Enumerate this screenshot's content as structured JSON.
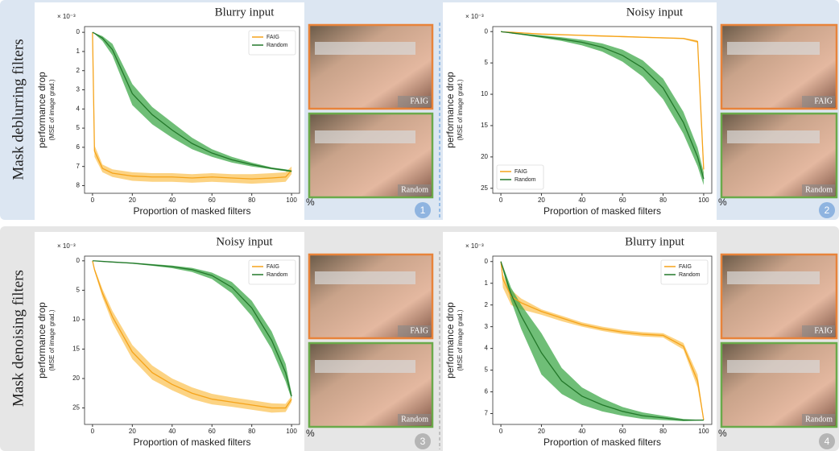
{
  "rows": [
    {
      "label": "Mask deblurring filters"
    },
    {
      "label": "Mask denoising filters"
    }
  ],
  "panels": [
    {
      "number": "1",
      "images": [
        "FAIG",
        "Random"
      ]
    },
    {
      "number": "2",
      "images": [
        "FAIG",
        "Random"
      ]
    },
    {
      "number": "3",
      "images": [
        "FAIG",
        "Random"
      ]
    },
    {
      "number": "4",
      "images": [
        "FAIG",
        "Random"
      ]
    }
  ],
  "chart_data": [
    {
      "type": "line",
      "title": "Blurry input",
      "xlabel": "Proportion of masked filters",
      "x_unit": "%",
      "ylabel": "performance drop",
      "ylabel_sub": "(MSE of image grad.)",
      "y_scale": "× 10⁻³",
      "legend": "upper right",
      "x": [
        0,
        1,
        5,
        10,
        20,
        30,
        40,
        50,
        60,
        70,
        80,
        90,
        97,
        100
      ],
      "xlim": [
        -4,
        104
      ],
      "xticks": [
        0,
        20,
        40,
        60,
        80,
        100
      ],
      "ylim": [
        8.4,
        -0.3
      ],
      "yticks": [
        0,
        1,
        2,
        3,
        4,
        5,
        6,
        7,
        8
      ],
      "series": [
        {
          "name": "FAIG",
          "color": "#f5a31a",
          "band_color": "#fbc45a",
          "values": [
            0,
            6.2,
            7.1,
            7.35,
            7.5,
            7.55,
            7.55,
            7.6,
            7.55,
            7.6,
            7.65,
            7.6,
            7.55,
            7.2
          ],
          "lower": [
            0,
            5.9,
            6.9,
            7.15,
            7.3,
            7.35,
            7.35,
            7.4,
            7.35,
            7.4,
            7.4,
            7.35,
            7.3,
            7.0
          ],
          "upper": [
            0,
            6.5,
            7.3,
            7.55,
            7.75,
            7.8,
            7.8,
            7.85,
            7.8,
            7.85,
            7.9,
            7.85,
            7.8,
            7.4
          ]
        },
        {
          "name": "Random",
          "color": "#23782a",
          "band_color": "#3fa84a",
          "values": [
            0,
            0.05,
            0.3,
            0.9,
            3.2,
            4.3,
            5.1,
            5.8,
            6.3,
            6.65,
            6.9,
            7.1,
            7.2,
            7.25
          ],
          "lower": [
            0,
            0.03,
            0.2,
            0.6,
            2.7,
            3.9,
            4.7,
            5.5,
            6.1,
            6.5,
            6.8,
            7.05,
            7.15,
            7.2
          ],
          "upper": [
            0,
            0.08,
            0.45,
            1.2,
            3.8,
            4.8,
            5.5,
            6.1,
            6.5,
            6.8,
            7.0,
            7.15,
            7.25,
            7.3
          ]
        }
      ]
    },
    {
      "type": "line",
      "title": "Noisy input",
      "xlabel": "Proportion of masked filters",
      "x_unit": "%",
      "ylabel": "performance drop",
      "ylabel_sub": "(MSE of image grad.)",
      "y_scale": "× 10⁻³",
      "legend": "lower left",
      "x": [
        0,
        1,
        5,
        10,
        20,
        30,
        40,
        50,
        60,
        70,
        80,
        90,
        97,
        100
      ],
      "xlim": [
        -4,
        104
      ],
      "xticks": [
        0,
        20,
        40,
        60,
        80,
        100
      ],
      "ylim": [
        25.8,
        -0.8
      ],
      "yticks": [
        0,
        5,
        10,
        15,
        20,
        25
      ],
      "series": [
        {
          "name": "FAIG",
          "color": "#f5a31a",
          "band_color": "#fbc45a",
          "values": [
            0,
            0.05,
            0.1,
            0.2,
            0.4,
            0.5,
            0.6,
            0.7,
            0.8,
            0.9,
            1.0,
            1.1,
            1.6,
            22
          ],
          "lower": [
            0,
            0.03,
            0.08,
            0.15,
            0.3,
            0.4,
            0.5,
            0.6,
            0.7,
            0.8,
            0.9,
            1.0,
            1.4,
            20.5
          ],
          "upper": [
            0,
            0.08,
            0.15,
            0.25,
            0.5,
            0.6,
            0.7,
            0.8,
            0.9,
            1.0,
            1.1,
            1.2,
            1.8,
            23.5
          ]
        },
        {
          "name": "Random",
          "color": "#23782a",
          "band_color": "#3fa84a",
          "values": [
            0,
            0.05,
            0.2,
            0.4,
            0.8,
            1.2,
            1.7,
            2.5,
            3.8,
            5.8,
            9,
            14.5,
            20,
            23.5
          ],
          "lower": [
            0,
            0.03,
            0.15,
            0.3,
            0.6,
            0.9,
            1.3,
            1.9,
            2.9,
            4.6,
            7.5,
            12.8,
            18.5,
            22.5
          ],
          "upper": [
            0,
            0.08,
            0.3,
            0.5,
            1.0,
            1.5,
            2.2,
            3.2,
            4.8,
            7.2,
            10.8,
            16.3,
            21.5,
            24.5
          ]
        }
      ]
    },
    {
      "type": "line",
      "title": "Noisy input",
      "xlabel": "Proportion of masked filters",
      "x_unit": "%",
      "ylabel": "performance drop",
      "ylabel_sub": "(MSE of image grad.)",
      "y_scale": "× 10⁻³",
      "legend": "upper right",
      "x": [
        0,
        1,
        5,
        10,
        20,
        30,
        40,
        50,
        60,
        70,
        80,
        90,
        97,
        100
      ],
      "xlim": [
        -4,
        104
      ],
      "xticks": [
        0,
        20,
        40,
        60,
        80,
        100
      ],
      "ylim": [
        27.8,
        -0.8
      ],
      "yticks": [
        0,
        5,
        10,
        15,
        20,
        25
      ],
      "series": [
        {
          "name": "FAIG",
          "color": "#f5a31a",
          "band_color": "#fbc45a",
          "values": [
            0,
            1.5,
            5.5,
            9.5,
            15.5,
            19,
            21,
            22.5,
            23.5,
            24,
            24.5,
            25,
            25,
            23.5
          ],
          "lower": [
            0,
            1.2,
            4.8,
            8.5,
            14.3,
            17.8,
            20,
            21.5,
            22.6,
            23.2,
            23.7,
            24.2,
            24.3,
            23
          ],
          "upper": [
            0,
            1.8,
            6.2,
            10.5,
            16.7,
            20.2,
            22,
            23.5,
            24.4,
            24.8,
            25.3,
            25.8,
            25.7,
            24
          ]
        },
        {
          "name": "Random",
          "color": "#23782a",
          "band_color": "#3fa84a",
          "values": [
            0,
            0,
            0.1,
            0.2,
            0.4,
            0.7,
            1.0,
            1.5,
            2.5,
            4.5,
            8,
            13.5,
            19,
            23
          ],
          "lower": [
            0,
            0,
            0.08,
            0.15,
            0.3,
            0.55,
            0.8,
            1.2,
            2.0,
            3.6,
            6.8,
            12,
            17.5,
            22.5
          ],
          "upper": [
            0,
            0.02,
            0.15,
            0.3,
            0.5,
            0.85,
            1.25,
            1.9,
            3.1,
            5.5,
            9.4,
            15,
            20.5,
            23.5
          ]
        }
      ]
    },
    {
      "type": "line",
      "title": "Blurry input",
      "xlabel": "Proportion of masked filters",
      "x_unit": "%",
      "ylabel": "performance drop",
      "ylabel_sub": "(MSE of image grad.)",
      "y_scale": "× 10⁻³",
      "legend": "upper right",
      "x": [
        0,
        1,
        5,
        10,
        20,
        30,
        40,
        50,
        60,
        70,
        80,
        90,
        97,
        100
      ],
      "xlim": [
        -4,
        104
      ],
      "xticks": [
        0,
        20,
        40,
        60,
        80,
        100
      ],
      "ylim": [
        7.5,
        -0.25
      ],
      "yticks": [
        0,
        1,
        2,
        3,
        4,
        5,
        6,
        7
      ],
      "series": [
        {
          "name": "FAIG",
          "color": "#f5a31a",
          "band_color": "#fbc45a",
          "values": [
            0,
            0.8,
            1.6,
            1.9,
            2.3,
            2.6,
            2.9,
            3.1,
            3.25,
            3.35,
            3.4,
            3.9,
            5.5,
            7.3
          ],
          "lower": [
            0,
            0.6,
            1.3,
            1.7,
            2.2,
            2.5,
            2.8,
            3.0,
            3.15,
            3.25,
            3.3,
            3.75,
            5.2,
            7.25
          ],
          "upper": [
            0,
            1.2,
            2.0,
            2.2,
            2.45,
            2.75,
            3.0,
            3.2,
            3.35,
            3.45,
            3.5,
            4.05,
            5.8,
            7.35
          ]
        },
        {
          "name": "Random",
          "color": "#23782a",
          "band_color": "#3fa84a",
          "values": [
            0,
            0.3,
            1.5,
            2.5,
            4.2,
            5.5,
            6.2,
            6.6,
            6.9,
            7.1,
            7.2,
            7.3,
            7.3,
            7.3
          ],
          "lower": [
            0,
            0.2,
            1.2,
            2.0,
            3.3,
            4.9,
            5.8,
            6.3,
            6.7,
            6.95,
            7.1,
            7.25,
            7.28,
            7.28
          ],
          "upper": [
            0,
            0.4,
            1.8,
            3.1,
            5.2,
            6.1,
            6.6,
            6.9,
            7.1,
            7.25,
            7.3,
            7.35,
            7.33,
            7.32
          ]
        }
      ]
    }
  ]
}
